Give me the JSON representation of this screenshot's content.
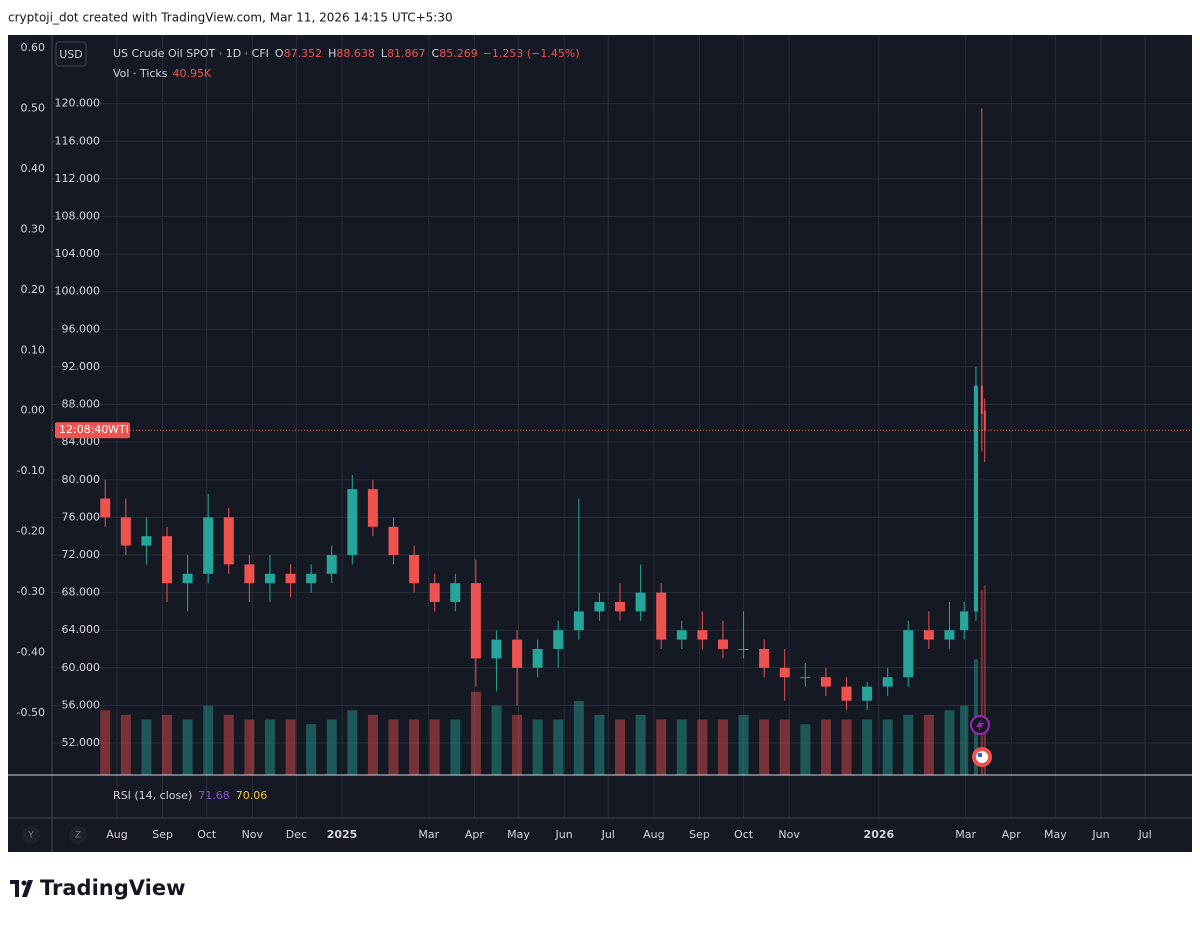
{
  "header": "cryptoji_dot created with TradingView.com, Mar 11, 2026 14:15 UTC+5:30",
  "brand": "TradingView",
  "chart_data": {
    "type": "candlestick",
    "currency": "USD",
    "title": "US Crude Oil SPOT · 1D · CFI",
    "ohlc_labels": [
      "O",
      "H",
      "L",
      "C"
    ],
    "change": "−1.253 (−1.45%)",
    "volume_title": "Vol · Ticks",
    "volume_last": "40.95K",
    "price_tag": {
      "time": "12:08:40",
      "symbol": "WTI"
    },
    "rsi": {
      "title": "RSI (14, close)",
      "value": 71.68,
      "ma": 70.06
    },
    "axis_buttons": [
      "Y",
      "Z"
    ],
    "up_color": "#26a69a",
    "down_color": "#ef5350",
    "grid": true,
    "xlim": [
      -44.2,
      730.9
    ],
    "xticks": [
      {
        "value": 0,
        "label": "Aug"
      },
      {
        "value": 31,
        "label": "Sep"
      },
      {
        "value": 61,
        "label": "Oct"
      },
      {
        "value": 92,
        "label": "Nov"
      },
      {
        "value": 122,
        "label": "Dec"
      },
      {
        "value": 153,
        "label": "2025"
      },
      {
        "value": 212,
        "label": "Mar"
      },
      {
        "value": 243,
        "label": "Apr"
      },
      {
        "value": 273,
        "label": "May"
      },
      {
        "value": 304,
        "label": "Jun"
      },
      {
        "value": 334,
        "label": "Jul"
      },
      {
        "value": 365,
        "label": "Aug"
      },
      {
        "value": 396,
        "label": "Sep"
      },
      {
        "value": 426,
        "label": "Oct"
      },
      {
        "value": 457,
        "label": "Nov"
      },
      {
        "value": 518,
        "label": "2026"
      },
      {
        "value": 577,
        "label": "Mar"
      },
      {
        "value": 608,
        "label": "Apr"
      },
      {
        "value": 638,
        "label": "May"
      },
      {
        "value": 669,
        "label": "Jun"
      },
      {
        "value": 699,
        "label": "Jul"
      }
    ],
    "ylim": [
      48.6,
      127.3
    ],
    "yticks": [
      {
        "value": 52,
        "label": "52.000"
      },
      {
        "value": 56,
        "label": "56.000"
      },
      {
        "value": 60,
        "label": "60.000"
      },
      {
        "value": 64,
        "label": "64.000"
      },
      {
        "value": 68,
        "label": "68.000"
      },
      {
        "value": 72,
        "label": "72.000"
      },
      {
        "value": 76,
        "label": "76.000"
      },
      {
        "value": 80,
        "label": "80.000"
      },
      {
        "value": 84,
        "label": "84.000"
      },
      {
        "value": 88,
        "label": "88.000"
      },
      {
        "value": 92,
        "label": "92.000"
      },
      {
        "value": 96,
        "label": "96.000"
      },
      {
        "value": 100,
        "label": "100.000"
      },
      {
        "value": 104,
        "label": "104.000"
      },
      {
        "value": 108,
        "label": "108.000"
      },
      {
        "value": 112,
        "label": "112.000"
      },
      {
        "value": 116,
        "label": "116.000"
      },
      {
        "value": 120,
        "label": "120.000"
      }
    ],
    "y2lim": [
      -0.6026,
      0.6215
    ],
    "y2ticks": [
      {
        "value": 0.6,
        "label": "0.60"
      },
      {
        "value": 0.5,
        "label": "0.50"
      },
      {
        "value": 0.4,
        "label": "0.40"
      },
      {
        "value": 0.3,
        "label": "0.30"
      },
      {
        "value": 0.2,
        "label": "0.20"
      },
      {
        "value": 0.1,
        "label": "0.10"
      },
      {
        "value": 0,
        "label": "0.00"
      },
      {
        "value": -0.1,
        "label": "-0.10"
      },
      {
        "value": -0.2,
        "label": "-0.20"
      },
      {
        "value": -0.3,
        "label": "-0.30"
      },
      {
        "value": -0.4,
        "label": "-0.40"
      },
      {
        "value": -0.5,
        "label": "-0.50"
      }
    ],
    "volume_lim": [
      0,
      160
    ],
    "x": [
      -8,
      6,
      20,
      34,
      48,
      62,
      76,
      90,
      104,
      118,
      132,
      146,
      160,
      174,
      188,
      202,
      216,
      230,
      244,
      258,
      272,
      286,
      300,
      314,
      328,
      342,
      356,
      370,
      384,
      398,
      412,
      426,
      440,
      454,
      468,
      482,
      496,
      510,
      524,
      538,
      552,
      566,
      576,
      584,
      588,
      590
    ],
    "open": [
      78,
      76,
      73,
      74,
      69,
      70,
      76,
      71,
      69,
      70,
      69,
      70,
      72,
      79,
      75,
      72,
      69,
      67,
      69,
      61,
      63,
      60,
      62,
      64,
      66,
      67,
      66,
      68,
      63,
      64,
      63,
      62,
      62,
      60,
      59,
      59,
      58,
      56.5,
      58,
      59,
      64,
      63,
      64,
      66,
      90,
      87.352
    ],
    "high": [
      80,
      78,
      76,
      75,
      72,
      78.5,
      77,
      72,
      72,
      71,
      71,
      73,
      80.5,
      80,
      76,
      73,
      70,
      70,
      71.5,
      64,
      64,
      63,
      65,
      78,
      68,
      69,
      71,
      69,
      65,
      66,
      65,
      66,
      63,
      62,
      60.5,
      60,
      59,
      58.5,
      60,
      65,
      66,
      67,
      67,
      92,
      119.5,
      88.638
    ],
    "low": [
      75,
      72,
      71,
      67,
      66,
      69,
      70,
      67,
      67,
      67.5,
      68,
      69,
      71,
      74,
      71,
      68,
      66,
      66,
      58,
      57.5,
      56,
      59,
      60,
      63,
      65,
      65,
      65,
      62,
      62,
      62,
      61,
      61,
      59,
      56.5,
      58,
      57,
      55.5,
      55.5,
      57,
      58,
      62,
      62,
      63,
      65,
      83,
      81.867
    ],
    "close": [
      76,
      73,
      74,
      69,
      70,
      76,
      71,
      69,
      70,
      69,
      70,
      72,
      79,
      75,
      72,
      69,
      67,
      69,
      61,
      63,
      60,
      62,
      64,
      66,
      67,
      66,
      68,
      63,
      64,
      63,
      62,
      62,
      60,
      59,
      59,
      58,
      56.5,
      58,
      59,
      64,
      63,
      64,
      66,
      90,
      87,
      85.269
    ],
    "volume": [
      14,
      13,
      12,
      13,
      12,
      15,
      13,
      12,
      12,
      12,
      11,
      12,
      14,
      13,
      12,
      12,
      12,
      12,
      18,
      15,
      13,
      12,
      12,
      16,
      13,
      12,
      13,
      12,
      12,
      12,
      12,
      13,
      12,
      12,
      11,
      12,
      12,
      12,
      12,
      13,
      13,
      14,
      15,
      25,
      40,
      40.95
    ]
  }
}
